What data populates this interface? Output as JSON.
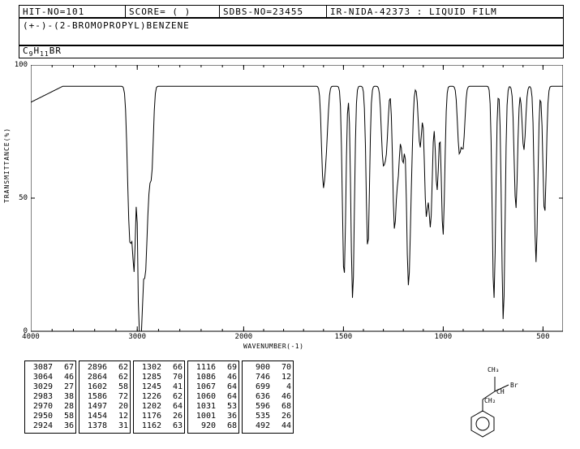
{
  "header": {
    "hit": "HIT-NO=101",
    "score": "SCORE=  (  )",
    "sdbs": "SDBS-NO=23455",
    "ir": "IR-NIDA-42373 : LIQUID FILM",
    "compound": "(+-)-(2-BROMOPROPYL)BENZENE",
    "formula_parts": [
      "C",
      "9",
      "H",
      "11",
      "BR"
    ]
  },
  "chart": {
    "type": "line",
    "xlabel": "WAVENUMBER(-1)",
    "ylabel": "TRANSMITTANCE(%)",
    "xlim": [
      4000,
      400
    ],
    "ylim": [
      0,
      100
    ],
    "xticks": [
      4000,
      3000,
      2000,
      1500,
      1000,
      500
    ],
    "yticks": [
      0,
      50,
      100
    ],
    "xminor_step_hi": 200,
    "xminor_step_lo": 100,
    "line_color": "#000000",
    "background_color": "#ffffff",
    "border_color": "#000000",
    "peaks": [
      {
        "wn": 3087,
        "t": 67
      },
      {
        "wn": 3064,
        "t": 46
      },
      {
        "wn": 3029,
        "t": 27
      },
      {
        "wn": 2983,
        "t": 38
      },
      {
        "wn": 2970,
        "t": 28
      },
      {
        "wn": 2950,
        "t": 58
      },
      {
        "wn": 2924,
        "t": 36
      },
      {
        "wn": 2896,
        "t": 62
      },
      {
        "wn": 2864,
        "t": 62
      },
      {
        "wn": 1602,
        "t": 58
      },
      {
        "wn": 1586,
        "t": 72
      },
      {
        "wn": 1497,
        "t": 20
      },
      {
        "wn": 1454,
        "t": 12
      },
      {
        "wn": 1378,
        "t": 31
      },
      {
        "wn": 1302,
        "t": 66
      },
      {
        "wn": 1285,
        "t": 70
      },
      {
        "wn": 1245,
        "t": 41
      },
      {
        "wn": 1226,
        "t": 62
      },
      {
        "wn": 1202,
        "t": 64
      },
      {
        "wn": 1176,
        "t": 26
      },
      {
        "wn": 1162,
        "t": 63
      },
      {
        "wn": 1116,
        "t": 69
      },
      {
        "wn": 1086,
        "t": 46
      },
      {
        "wn": 1067,
        "t": 64
      },
      {
        "wn": 1060,
        "t": 64
      },
      {
        "wn": 1031,
        "t": 53
      },
      {
        "wn": 1001,
        "t": 36
      },
      {
        "wn": 920,
        "t": 68
      },
      {
        "wn": 900,
        "t": 70
      },
      {
        "wn": 746,
        "t": 12
      },
      {
        "wn": 699,
        "t": 4
      },
      {
        "wn": 636,
        "t": 46
      },
      {
        "wn": 596,
        "t": 68
      },
      {
        "wn": 535,
        "t": 26
      },
      {
        "wn": 492,
        "t": 44
      }
    ],
    "baseline": 92
  },
  "peak_tables": [
    [
      {
        "wn": 3087,
        "t": 67
      },
      {
        "wn": 3064,
        "t": 46
      },
      {
        "wn": 3029,
        "t": 27
      },
      {
        "wn": 2983,
        "t": 38
      },
      {
        "wn": 2970,
        "t": 28
      },
      {
        "wn": 2950,
        "t": 58
      },
      {
        "wn": 2924,
        "t": 36
      }
    ],
    [
      {
        "wn": 2896,
        "t": 62
      },
      {
        "wn": 2864,
        "t": 62
      },
      {
        "wn": 1602,
        "t": 58
      },
      {
        "wn": 1586,
        "t": 72
      },
      {
        "wn": 1497,
        "t": 20
      },
      {
        "wn": 1454,
        "t": 12
      },
      {
        "wn": 1378,
        "t": 31
      }
    ],
    [
      {
        "wn": 1302,
        "t": 66
      },
      {
        "wn": 1285,
        "t": 70
      },
      {
        "wn": 1245,
        "t": 41
      },
      {
        "wn": 1226,
        "t": 62
      },
      {
        "wn": 1202,
        "t": 64
      },
      {
        "wn": 1176,
        "t": 26
      },
      {
        "wn": 1162,
        "t": 63
      }
    ],
    [
      {
        "wn": 1116,
        "t": 69
      },
      {
        "wn": 1086,
        "t": 46
      },
      {
        "wn": 1067,
        "t": 64
      },
      {
        "wn": 1060,
        "t": 64
      },
      {
        "wn": 1031,
        "t": 53
      },
      {
        "wn": 1001,
        "t": 36
      },
      {
        "wn": 920,
        "t": 68
      }
    ],
    [
      {
        "wn": 900,
        "t": 70
      },
      {
        "wn": 746,
        "t": 12
      },
      {
        "wn": 699,
        "t": 4
      },
      {
        "wn": 636,
        "t": 46
      },
      {
        "wn": 596,
        "t": 68
      },
      {
        "wn": 535,
        "t": 26
      },
      {
        "wn": 492,
        "t": 44
      }
    ]
  ],
  "molecule": {
    "labels": {
      "ch3": "CH₃",
      "br": "Br",
      "ch": "CH",
      "ch2": "CH₂"
    }
  }
}
